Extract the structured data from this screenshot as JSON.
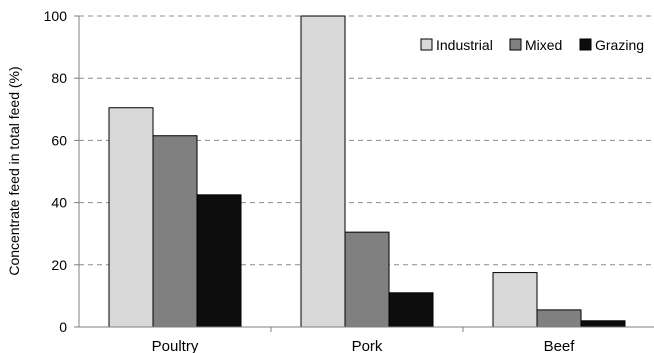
{
  "chart_data": {
    "type": "bar",
    "title": "",
    "xlabel": "",
    "ylabel": "Concentrate feed in total feed (%)",
    "categories": [
      "Poultry",
      "Pork",
      "Beef"
    ],
    "series": [
      {
        "name": "Industrial",
        "values": [
          70.5,
          100,
          17.5
        ],
        "color": "#d9d9d9"
      },
      {
        "name": "Mixed",
        "values": [
          61.5,
          30.5,
          5.5
        ],
        "color": "#808080"
      },
      {
        "name": "Grazing",
        "values": [
          42.5,
          11,
          2
        ],
        "color": "#0d0d0d"
      }
    ],
    "ylim": [
      0,
      100
    ],
    "yticks": [
      "0",
      "20",
      "40",
      "60",
      "80",
      "100"
    ],
    "grid": "horizontal dashed",
    "legend_position": "top-right"
  }
}
